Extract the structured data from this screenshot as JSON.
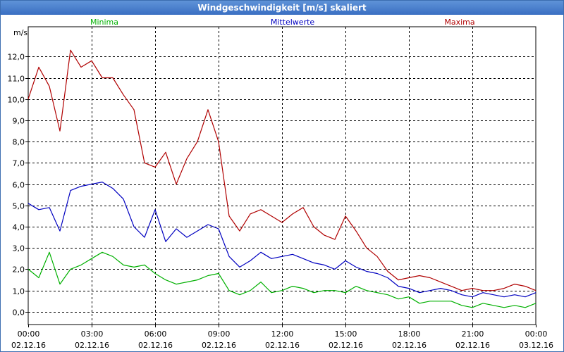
{
  "window": {
    "title": "Windgeschwindigkeit [m/s] skaliert"
  },
  "chart_data": {
    "type": "line",
    "title": "Windgeschwindigkeit [m/s] skaliert",
    "ylabel": "m/s",
    "xlabel": "",
    "ylim": [
      -0.6,
      13.4
    ],
    "xlim": [
      0,
      24
    ],
    "grid": true,
    "y_ticks": [
      0,
      1,
      2,
      3,
      4,
      5,
      6,
      7,
      8,
      9,
      10,
      11,
      12
    ],
    "y_tick_labels": [
      "0,0",
      "1,0",
      "2,0",
      "3,0",
      "4,0",
      "5,0",
      "6,0",
      "7,0",
      "8,0",
      "9,0",
      "10,0",
      "11,0",
      "12,0"
    ],
    "x_ticks": [
      {
        "hour": 0,
        "time": "00:00",
        "date": "02.12.16"
      },
      {
        "hour": 3,
        "time": "03:00",
        "date": "02.12.16"
      },
      {
        "hour": 6,
        "time": "06:00",
        "date": "02.12.16"
      },
      {
        "hour": 9,
        "time": "09:00",
        "date": "02.12.16"
      },
      {
        "hour": 12,
        "time": "12:00",
        "date": "02.12.16"
      },
      {
        "hour": 15,
        "time": "15:00",
        "date": "02.12.16"
      },
      {
        "hour": 18,
        "time": "18:00",
        "date": "02.12.16"
      },
      {
        "hour": 21,
        "time": "21:00",
        "date": "02.12.16"
      },
      {
        "hour": 24,
        "time": "00:00",
        "date": "03.12.16"
      }
    ],
    "series": [
      {
        "name": "Minima",
        "color": "#00b000",
        "x": [
          0,
          0.5,
          1,
          1.5,
          2,
          2.5,
          3,
          3.5,
          4,
          4.5,
          5,
          5.5,
          6,
          6.5,
          7,
          7.5,
          8,
          8.5,
          9,
          9.5,
          10,
          10.5,
          11,
          11.5,
          12,
          12.5,
          13,
          13.5,
          14,
          14.5,
          15,
          15.5,
          16,
          16.5,
          17,
          17.5,
          18,
          18.5,
          19,
          19.5,
          20,
          20.5,
          21,
          21.5,
          22,
          22.5,
          23,
          23.5,
          24
        ],
        "values": [
          2.0,
          1.6,
          2.8,
          1.3,
          2.0,
          2.2,
          2.5,
          2.8,
          2.6,
          2.2,
          2.1,
          2.2,
          1.8,
          1.5,
          1.3,
          1.4,
          1.5,
          1.7,
          1.8,
          1.0,
          0.8,
          1.0,
          1.4,
          0.9,
          1.0,
          1.2,
          1.1,
          0.9,
          1.0,
          1.0,
          0.9,
          1.2,
          1.0,
          0.9,
          0.8,
          0.6,
          0.7,
          0.4,
          0.5,
          0.5,
          0.5,
          0.3,
          0.2,
          0.4,
          0.3,
          0.2,
          0.3,
          0.2,
          0.4
        ]
      },
      {
        "name": "Mittelwerte",
        "color": "#0000c0",
        "x": [
          0,
          0.5,
          1,
          1.5,
          2,
          2.5,
          3,
          3.5,
          4,
          4.5,
          5,
          5.5,
          6,
          6.5,
          7,
          7.5,
          8,
          8.5,
          9,
          9.5,
          10,
          10.5,
          11,
          11.5,
          12,
          12.5,
          13,
          13.5,
          14,
          14.5,
          15,
          15.5,
          16,
          16.5,
          17,
          17.5,
          18,
          18.5,
          19,
          19.5,
          20,
          20.5,
          21,
          21.5,
          22,
          22.5,
          23,
          23.5,
          24
        ],
        "values": [
          5.1,
          4.8,
          4.9,
          3.8,
          5.7,
          5.9,
          6.0,
          6.1,
          5.8,
          5.3,
          4.0,
          3.5,
          4.8,
          3.3,
          3.9,
          3.5,
          3.8,
          4.1,
          3.9,
          2.6,
          2.1,
          2.4,
          2.8,
          2.5,
          2.6,
          2.7,
          2.5,
          2.3,
          2.2,
          2.0,
          2.4,
          2.1,
          1.9,
          1.8,
          1.6,
          1.2,
          1.1,
          0.9,
          1.0,
          1.1,
          1.0,
          0.8,
          0.7,
          0.9,
          0.8,
          0.7,
          0.8,
          0.7,
          0.9
        ]
      },
      {
        "name": "Maxima",
        "color": "#b00000",
        "x": [
          0,
          0.5,
          1,
          1.5,
          2,
          2.5,
          3,
          3.5,
          4,
          4.5,
          5,
          5.5,
          6,
          6.5,
          7,
          7.5,
          8,
          8.5,
          9,
          9.5,
          10,
          10.5,
          11,
          11.5,
          12,
          12.5,
          13,
          13.5,
          14,
          14.5,
          15,
          15.5,
          16,
          16.5,
          17,
          17.5,
          18,
          18.5,
          19,
          19.5,
          20,
          20.5,
          21,
          21.5,
          22,
          22.5,
          23,
          23.5,
          24
        ],
        "values": [
          10.0,
          11.5,
          10.6,
          8.5,
          12.3,
          11.5,
          11.8,
          11.0,
          11.0,
          10.2,
          9.5,
          7.0,
          6.8,
          7.5,
          6.0,
          7.2,
          8.0,
          9.5,
          8.0,
          4.5,
          3.8,
          4.6,
          4.8,
          4.5,
          4.2,
          4.6,
          4.9,
          4.0,
          3.6,
          3.4,
          4.5,
          3.8,
          3.0,
          2.6,
          1.9,
          1.5,
          1.6,
          1.7,
          1.6,
          1.4,
          1.2,
          1.0,
          1.1,
          1.0,
          1.0,
          1.1,
          1.3,
          1.2,
          1.0
        ]
      }
    ]
  }
}
